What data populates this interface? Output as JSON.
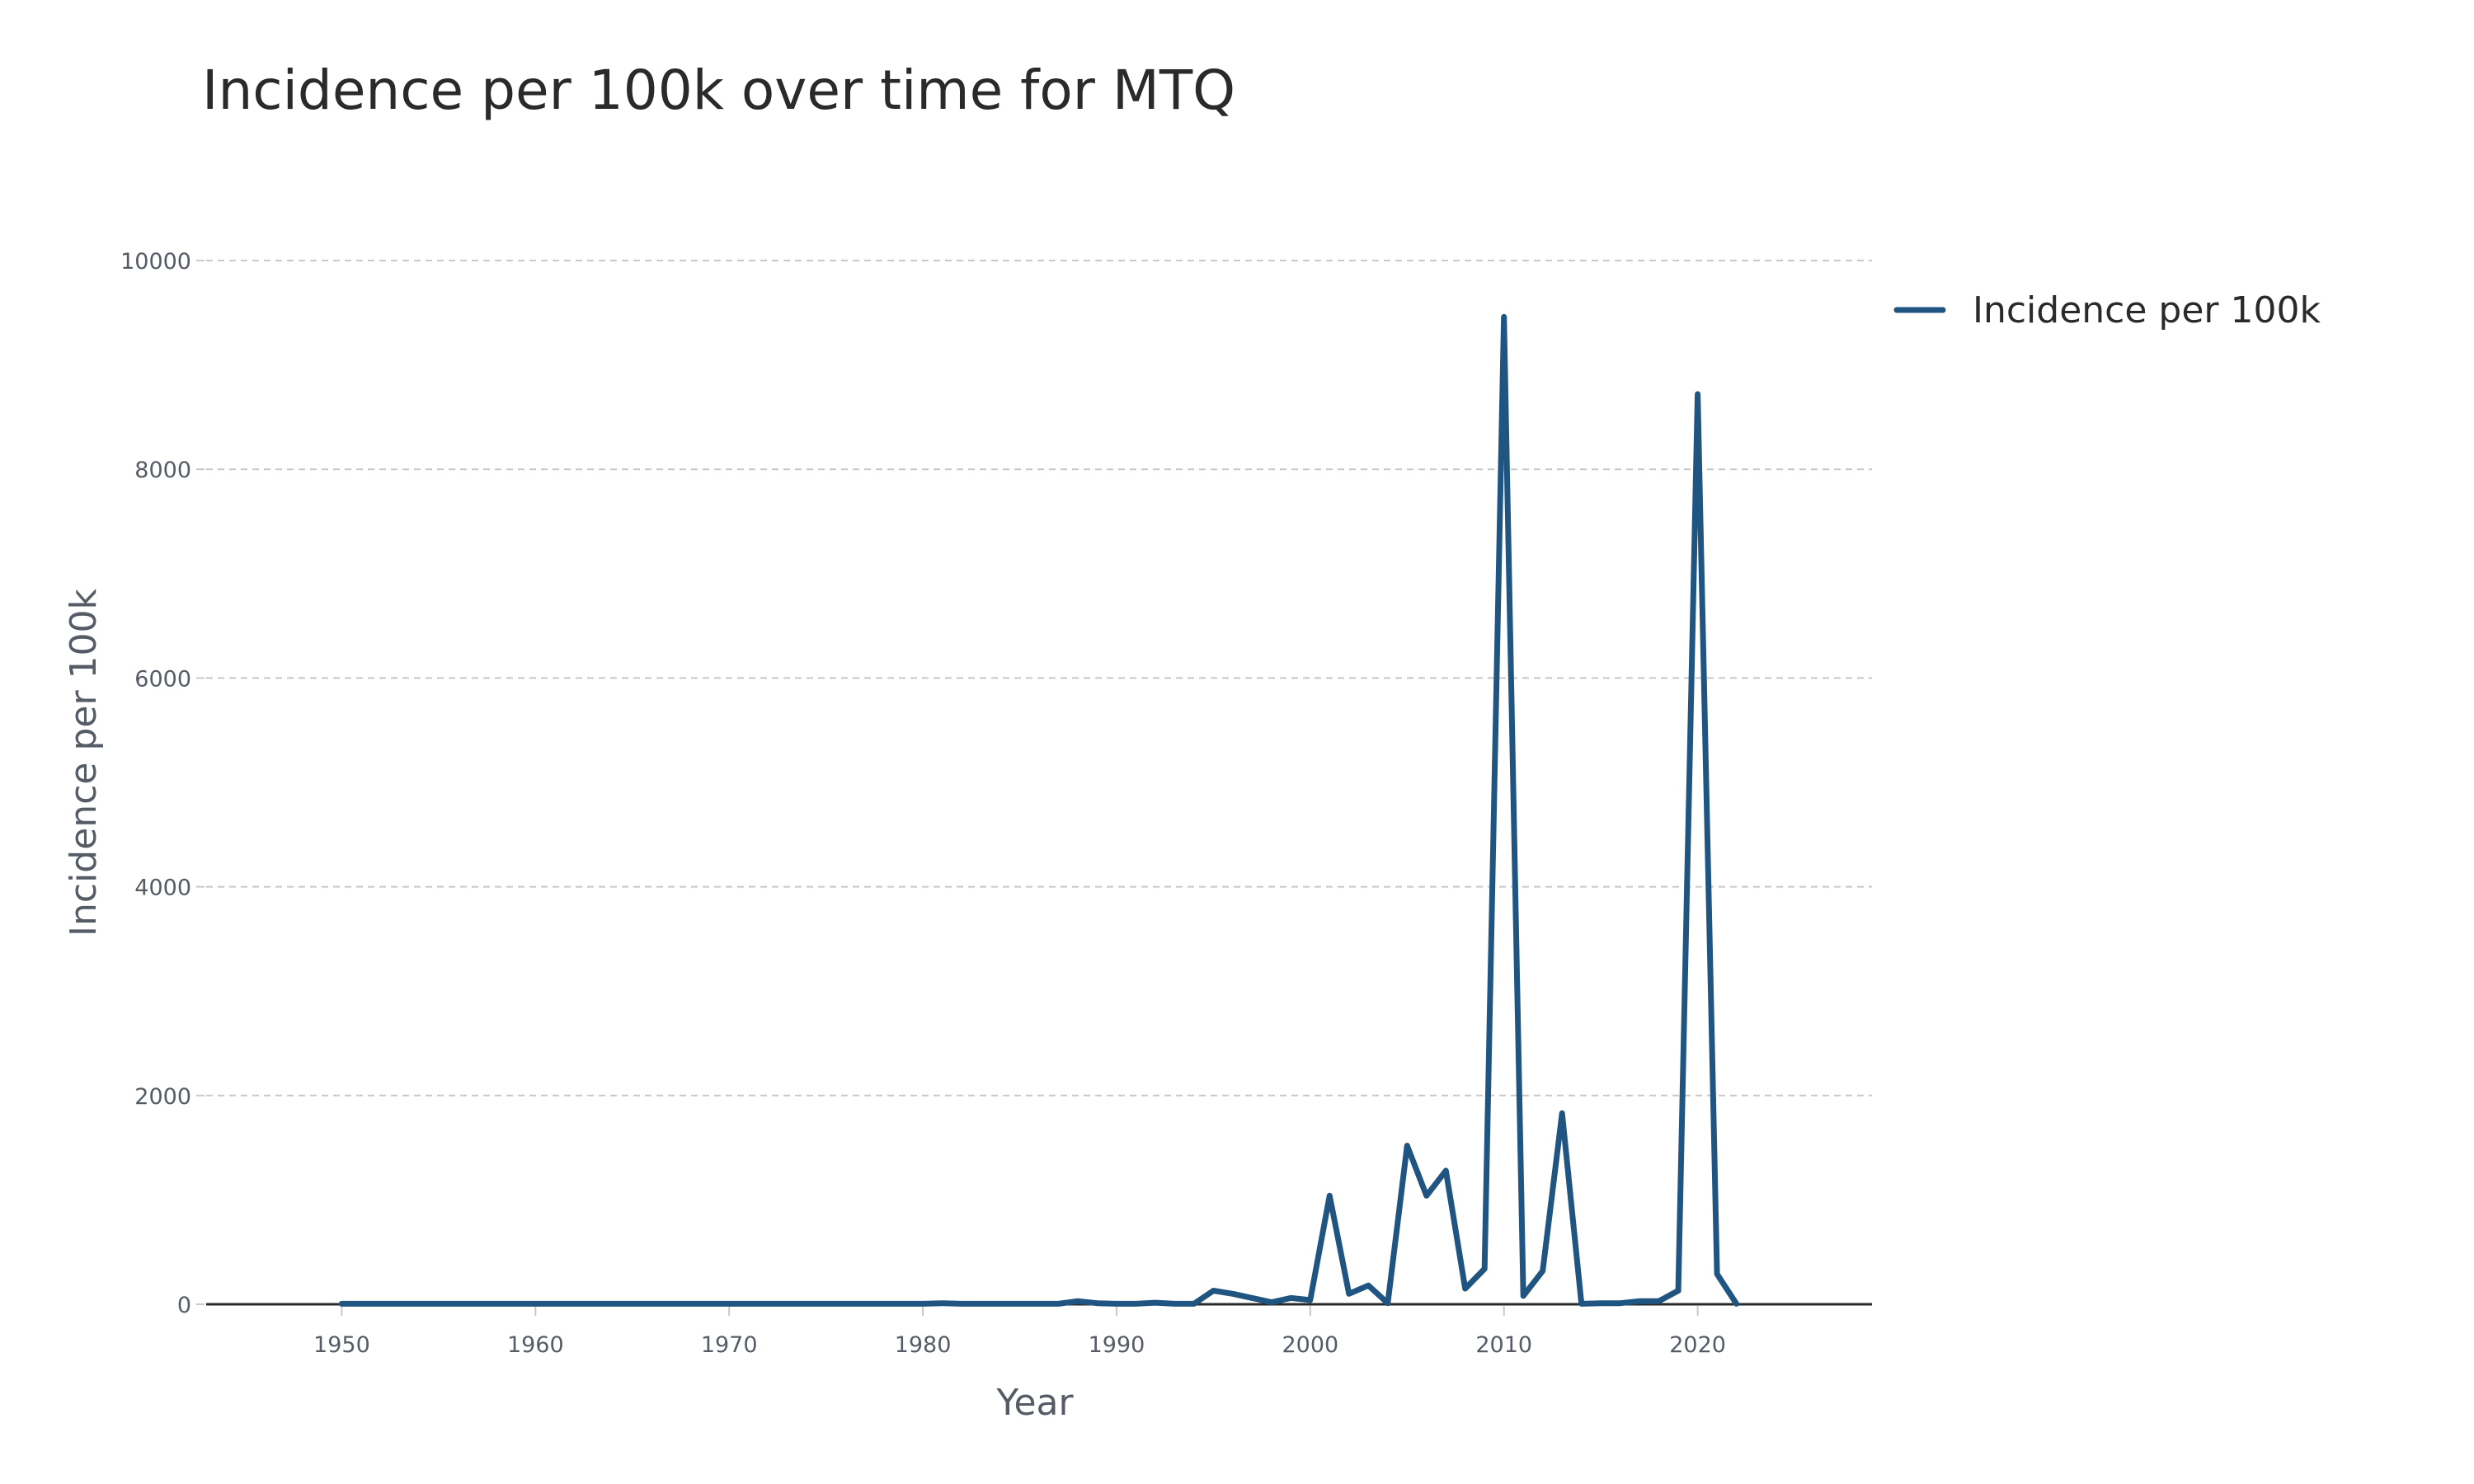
{
  "chart_data": {
    "type": "line",
    "title": "Incidence per 100k over time for MTQ",
    "xlabel": "Year",
    "ylabel": "Incidence per 100k",
    "xlim": [
      1943,
      2029
    ],
    "ylim": [
      0,
      10000
    ],
    "x_ticks": [
      1950,
      1960,
      1970,
      1980,
      1990,
      2000,
      2010,
      2020
    ],
    "y_ticks": [
      0,
      2000,
      4000,
      6000,
      8000,
      10000
    ],
    "grid": true,
    "legend_position": "top-right",
    "series": [
      {
        "name": "Incidence per 100k",
        "color": "#1f5580",
        "x": [
          1950,
          1951,
          1952,
          1953,
          1954,
          1955,
          1956,
          1957,
          1958,
          1959,
          1960,
          1961,
          1962,
          1963,
          1964,
          1965,
          1966,
          1967,
          1968,
          1969,
          1970,
          1971,
          1972,
          1973,
          1974,
          1975,
          1976,
          1977,
          1978,
          1979,
          1980,
          1981,
          1982,
          1983,
          1984,
          1985,
          1986,
          1987,
          1988,
          1989,
          1990,
          1991,
          1992,
          1993,
          1994,
          1995,
          1996,
          1997,
          1998,
          1999,
          2000,
          2001,
          2002,
          2003,
          2004,
          2005,
          2006,
          2007,
          2008,
          2009,
          2010,
          2011,
          2012,
          2013,
          2014,
          2015,
          2016,
          2017,
          2018,
          2019,
          2020,
          2021,
          2022
        ],
        "y": [
          5,
          5,
          5,
          5,
          5,
          5,
          5,
          5,
          5,
          5,
          5,
          5,
          5,
          5,
          5,
          5,
          5,
          5,
          5,
          5,
          5,
          5,
          5,
          5,
          5,
          5,
          5,
          5,
          5,
          5,
          5,
          10,
          5,
          5,
          5,
          5,
          5,
          5,
          30,
          10,
          5,
          5,
          15,
          5,
          5,
          130,
          100,
          60,
          20,
          60,
          40,
          1040,
          100,
          180,
          10,
          1520,
          1040,
          1280,
          150,
          340,
          9460,
          80,
          320,
          1830,
          5,
          10,
          10,
          30,
          30,
          130,
          8720,
          290,
          5
        ]
      }
    ]
  }
}
